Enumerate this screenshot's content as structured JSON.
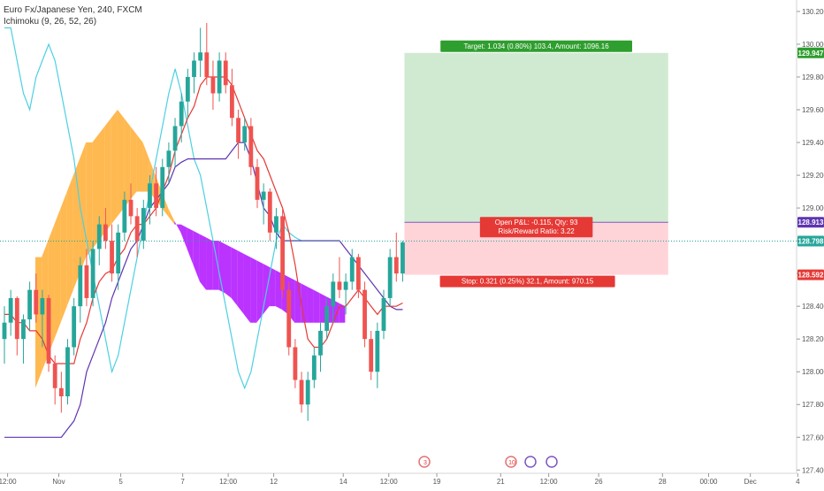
{
  "header": {
    "symbol_title": "Euro Fx/Japanese Yen, 240, FXCM",
    "indicator_title": "Ichimoku (9, 26, 52, 26)"
  },
  "colors": {
    "up_candle": "#26a69a",
    "down_candle": "#ef5350",
    "conversion_line": "#e53935",
    "base_line": "#5e35b1",
    "lagging_span": "#4dd0e1",
    "cloud_bull": "#ffa726",
    "cloud_bear": "#aa00ff",
    "target_zone": "#c8e6c9",
    "stop_zone": "#ffcdd2",
    "target_label_bg": "#2e9e2e",
    "stop_label_bg": "#e53935",
    "price_label_bg": "#26a69a"
  },
  "chart_data": {
    "type": "candlestick",
    "title": "Euro Fx/Japanese Yen, 240, FXCM",
    "indicator": "Ichimoku (9, 26, 52, 26)",
    "ylim": [
      127.38,
      130.27
    ],
    "y_ticks": [
      "127.400",
      "127.600",
      "127.800",
      "128.000",
      "128.200",
      "128.400",
      "128.600",
      "128.800",
      "129.000",
      "129.200",
      "129.400",
      "129.600",
      "129.800",
      "130.000",
      "130.200"
    ],
    "x_ticks": [
      "12:00",
      "Nov",
      "5",
      "7",
      "12:00",
      "12",
      "14",
      "12:00",
      "19",
      "21",
      "12:00",
      "26",
      "28",
      "00:00",
      "Dec",
      "4"
    ],
    "x_tick_offsets": [
      0.5,
      8.6,
      18.4,
      28.2,
      35.4,
      42.6,
      53.6,
      60.8,
      68.4,
      78.5,
      86.1,
      94.0,
      104.1,
      111.4,
      118.0,
      125.5
    ],
    "candles_ohlc": [
      [
        128.2,
        128.4,
        128.05,
        128.3
      ],
      [
        128.3,
        128.5,
        128.22,
        128.45
      ],
      [
        128.45,
        128.46,
        128.1,
        128.2
      ],
      [
        128.2,
        128.35,
        128.05,
        128.32
      ],
      [
        128.32,
        128.55,
        128.25,
        128.5
      ],
      [
        128.5,
        128.6,
        128.3,
        128.35
      ],
      [
        128.35,
        128.5,
        128.15,
        128.45
      ],
      [
        128.45,
        128.47,
        128.0,
        128.05
      ],
      [
        128.05,
        128.1,
        127.8,
        127.9
      ],
      [
        127.9,
        128.0,
        127.75,
        127.85
      ],
      [
        127.85,
        128.2,
        127.8,
        128.15
      ],
      [
        128.15,
        128.45,
        128.1,
        128.4
      ],
      [
        128.4,
        128.7,
        128.3,
        128.65
      ],
      [
        128.65,
        128.75,
        128.4,
        128.45
      ],
      [
        128.45,
        128.8,
        128.4,
        128.75
      ],
      [
        128.75,
        128.95,
        128.65,
        128.9
      ],
      [
        128.9,
        129.0,
        128.75,
        128.8
      ],
      [
        128.8,
        128.9,
        128.55,
        128.6
      ],
      [
        128.6,
        128.9,
        128.5,
        128.85
      ],
      [
        128.85,
        129.1,
        128.8,
        129.05
      ],
      [
        129.05,
        129.15,
        128.9,
        128.95
      ],
      [
        128.95,
        129.0,
        128.7,
        128.8
      ],
      [
        128.8,
        129.05,
        128.75,
        129.0
      ],
      [
        129.0,
        129.2,
        128.9,
        129.15
      ],
      [
        129.15,
        129.25,
        128.95,
        129.0
      ],
      [
        129.0,
        129.3,
        128.95,
        129.25
      ],
      [
        129.25,
        129.4,
        129.15,
        129.35
      ],
      [
        129.35,
        129.55,
        129.25,
        129.5
      ],
      [
        129.5,
        129.7,
        129.4,
        129.65
      ],
      [
        129.65,
        129.85,
        129.55,
        129.8
      ],
      [
        129.8,
        129.95,
        129.7,
        129.9
      ],
      [
        129.9,
        130.1,
        129.8,
        129.95
      ],
      [
        129.95,
        130.13,
        129.75,
        129.8
      ],
      [
        129.8,
        129.9,
        129.6,
        129.7
      ],
      [
        129.7,
        129.95,
        129.65,
        129.9
      ],
      [
        129.9,
        129.95,
        129.7,
        129.75
      ],
      [
        129.75,
        129.85,
        129.5,
        129.55
      ],
      [
        129.55,
        129.6,
        129.3,
        129.4
      ],
      [
        129.4,
        129.55,
        129.35,
        129.5
      ],
      [
        129.5,
        129.55,
        129.2,
        129.25
      ],
      [
        129.25,
        129.3,
        129.0,
        129.05
      ],
      [
        129.05,
        129.15,
        128.9,
        129.1
      ],
      [
        129.1,
        129.12,
        128.8,
        128.85
      ],
      [
        128.85,
        129.0,
        128.75,
        128.95
      ],
      [
        128.95,
        129.0,
        128.45,
        128.5
      ],
      [
        128.5,
        128.55,
        128.1,
        128.15
      ],
      [
        128.15,
        128.2,
        127.9,
        127.95
      ],
      [
        127.95,
        128.0,
        127.75,
        127.8
      ],
      [
        127.8,
        128.0,
        127.7,
        127.95
      ],
      [
        127.95,
        128.15,
        127.9,
        128.1
      ],
      [
        128.1,
        128.3,
        128.0,
        128.25
      ],
      [
        128.25,
        128.45,
        128.2,
        128.4
      ],
      [
        128.4,
        128.6,
        128.3,
        128.55
      ],
      [
        128.55,
        128.7,
        128.45,
        128.5
      ],
      [
        128.5,
        128.6,
        128.35,
        128.55
      ],
      [
        128.55,
        128.75,
        128.5,
        128.7
      ],
      [
        128.7,
        128.72,
        128.45,
        128.5
      ],
      [
        128.5,
        128.55,
        128.15,
        128.2
      ],
      [
        128.2,
        128.25,
        127.95,
        128.0
      ],
      [
        128.0,
        128.3,
        127.9,
        128.25
      ],
      [
        128.25,
        128.5,
        128.2,
        128.45
      ],
      [
        128.45,
        128.75,
        128.4,
        128.7
      ],
      [
        128.7,
        128.85,
        128.55,
        128.6
      ],
      [
        128.6,
        128.8,
        128.55,
        128.79
      ]
    ],
    "conversion_line": [
      128.35,
      128.35,
      128.3,
      128.3,
      128.25,
      128.25,
      128.2,
      128.1,
      128.05,
      128.05,
      128.05,
      128.05,
      128.2,
      128.3,
      128.45,
      128.55,
      128.6,
      128.62,
      128.7,
      128.75,
      128.85,
      128.9,
      128.9,
      128.95,
      129.0,
      129.1,
      129.2,
      129.35,
      129.45,
      129.55,
      129.62,
      129.75,
      129.8,
      129.8,
      129.8,
      129.8,
      129.75,
      129.65,
      129.55,
      129.45,
      129.35,
      129.3,
      129.2,
      129.1,
      129.0,
      128.85,
      128.65,
      128.4,
      128.2,
      128.15,
      128.15,
      128.2,
      128.3,
      128.4,
      128.4,
      128.45,
      128.5,
      128.45,
      128.4,
      128.35,
      128.4,
      128.4,
      128.4,
      128.42
    ],
    "base_line": [
      127.6,
      127.6,
      127.6,
      127.6,
      127.6,
      127.6,
      127.6,
      127.6,
      127.6,
      127.6,
      127.65,
      127.7,
      127.8,
      128.0,
      128.1,
      128.2,
      128.3,
      128.45,
      128.55,
      128.65,
      128.75,
      128.8,
      128.9,
      129.0,
      129.05,
      129.1,
      129.15,
      129.25,
      129.28,
      129.3,
      129.3,
      129.3,
      129.3,
      129.3,
      129.3,
      129.3,
      129.35,
      129.4,
      129.4,
      129.3,
      129.15,
      129.0,
      128.95,
      128.85,
      128.8,
      128.8,
      128.8,
      128.8,
      128.8,
      128.8,
      128.8,
      128.8,
      128.8,
      128.8,
      128.75,
      128.7,
      128.65,
      128.6,
      128.55,
      128.5,
      128.45,
      128.4,
      128.38,
      128.38
    ],
    "lagging_span": [
      130.1,
      130.1,
      129.9,
      129.7,
      129.6,
      129.8,
      129.9,
      130.0,
      129.9,
      129.7,
      129.5,
      129.3,
      129.0,
      128.8,
      128.6,
      128.4,
      128.2,
      128.0,
      128.1,
      128.3,
      128.5,
      128.7,
      128.9,
      129.1,
      129.3,
      129.5,
      129.7,
      129.85,
      129.7,
      129.5,
      129.3,
      129.2,
      129.0,
      128.8,
      128.6,
      128.4,
      128.2,
      128.0,
      127.9,
      128.0,
      128.2,
      128.4,
      128.6,
      128.8,
      128.9,
      128.85,
      128.82,
      128.8
    ],
    "cloud_span_a": [
      128.7,
      128.7,
      128.8,
      128.9,
      129.0,
      129.1,
      129.2,
      129.3,
      129.4,
      129.4,
      129.45,
      129.5,
      129.55,
      129.6,
      129.55,
      129.5,
      129.45,
      129.4,
      129.3,
      129.2,
      129.1,
      129.0,
      128.92,
      128.85,
      128.75,
      128.65,
      128.55,
      128.5,
      128.5,
      128.5,
      128.48,
      128.45,
      128.4,
      128.35,
      128.3,
      128.3,
      128.35,
      128.4,
      128.4,
      128.38,
      128.35,
      128.3,
      128.3,
      128.3,
      128.3,
      128.3,
      128.3,
      128.3,
      128.3,
      128.3
    ],
    "cloud_span_b": [
      127.9,
      128.0,
      128.1,
      128.2,
      128.3,
      128.4,
      128.5,
      128.6,
      128.7,
      128.75,
      128.8,
      128.85,
      128.9,
      128.95,
      129.0,
      129.05,
      129.1,
      129.1,
      129.1,
      129.05,
      129.0,
      128.95,
      128.9,
      128.9,
      128.88,
      128.86,
      128.84,
      128.82,
      128.8,
      128.8,
      128.78,
      128.76,
      128.74,
      128.72,
      128.7,
      128.68,
      128.66,
      128.64,
      128.62,
      128.6,
      128.58,
      128.56,
      128.54,
      128.52,
      128.5,
      128.48,
      128.46,
      128.44,
      128.42,
      128.4
    ],
    "position": {
      "entry_price": 128.913,
      "target_price": 129.947,
      "stop_price": 128.592,
      "current_price": 128.798,
      "target_label": "Target: 1.034 (0.80%) 103.4, Amount: 1096.16",
      "pnl_label": "Open P&L: -0.115, Qty: 93",
      "rr_label": "Risk/Reward Ratio: 3.22",
      "stop_label": "Stop: 0.321 (0.25%) 32.1, Amount: 970.15",
      "target_price_label": "129.947",
      "entry_price_label": "128.913",
      "current_price_label": "128.798",
      "stop_price_label": "128.592"
    }
  },
  "events": [
    {
      "label": "3",
      "icon": "calendar-event-icon"
    },
    {
      "label": "10",
      "icon": "calendar-event-icon"
    },
    {
      "label": "",
      "icon": "calendar-event-icon"
    },
    {
      "label": "",
      "icon": "calendar-event-icon"
    }
  ]
}
